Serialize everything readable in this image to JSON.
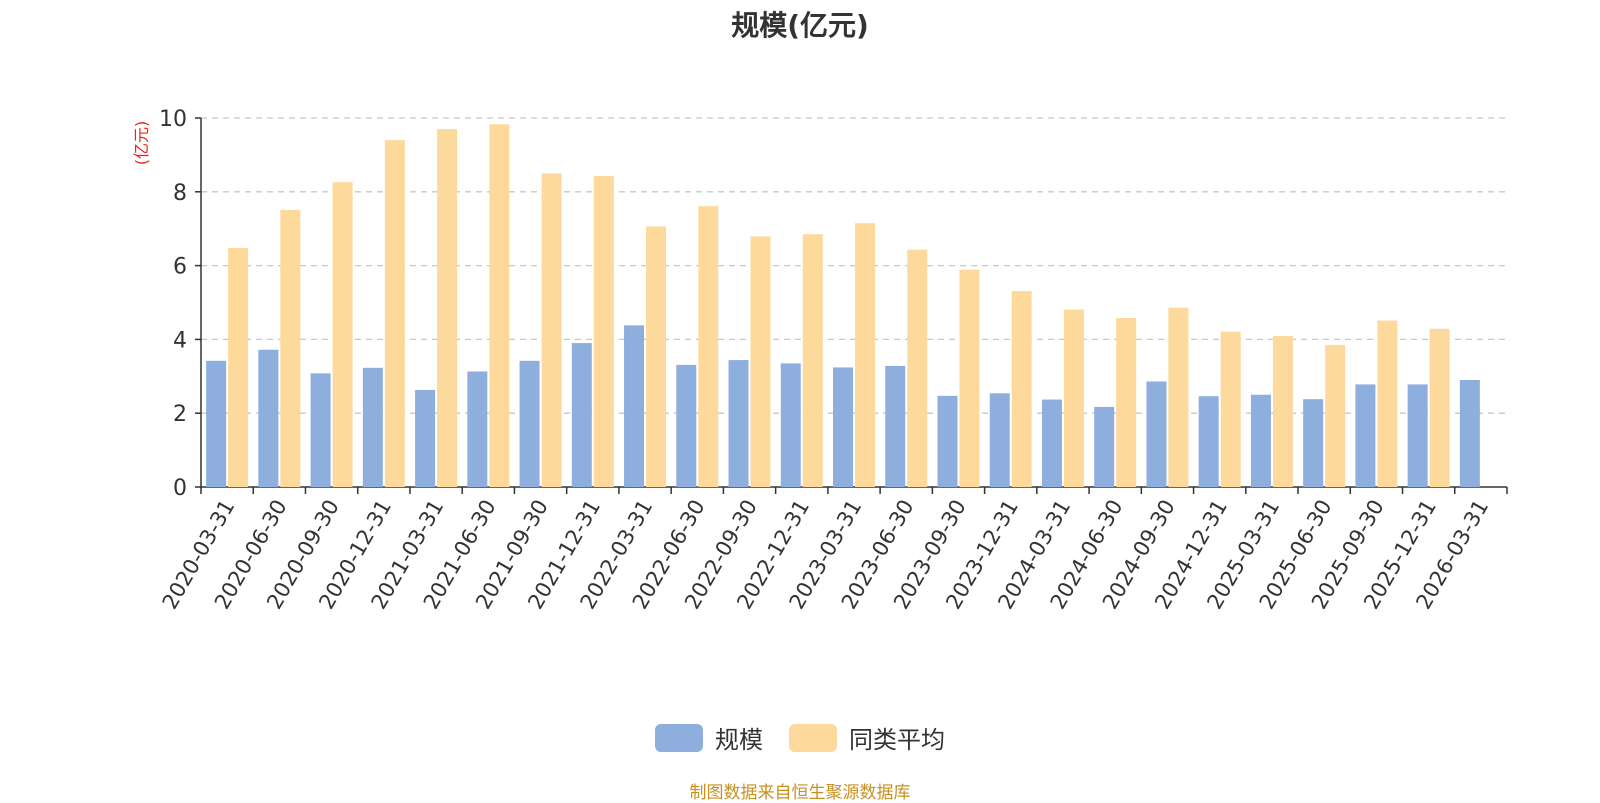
{
  "title": "规模(亿元)",
  "source_note": "制图数据来自恒生聚源数据库",
  "chart_data": {
    "type": "bar",
    "title": "规模(亿元)",
    "ylabel": "(亿元)",
    "xlabel": "",
    "ylim": [
      0,
      10
    ],
    "yticks": [
      0,
      2,
      4,
      6,
      8,
      10
    ],
    "grid": true,
    "legend_position": "bottom",
    "categories": [
      "2020-03-31",
      "2020-06-30",
      "2020-09-30",
      "2020-12-31",
      "2021-03-31",
      "2021-06-30",
      "2021-09-30",
      "2021-12-31",
      "2022-03-31",
      "2022-06-30",
      "2022-09-30",
      "2022-12-31",
      "2023-03-31",
      "2023-06-30",
      "2023-09-30",
      "2023-12-31",
      "2024-03-31",
      "2024-06-30",
      "2024-09-30",
      "2024-12-31",
      "2025-03-31",
      "2025-06-30",
      "2025-09-30",
      "2025-12-31",
      "2026-03-31"
    ],
    "series": [
      {
        "name": "规模",
        "color": "#8eaedd",
        "values": [
          3.42,
          3.72,
          3.08,
          3.23,
          2.63,
          3.13,
          3.42,
          3.9,
          4.38,
          3.31,
          3.44,
          3.35,
          3.24,
          3.28,
          2.47,
          2.54,
          2.37,
          2.17,
          2.86,
          2.46,
          2.5,
          2.38,
          2.78,
          2.78,
          2.9
        ]
      },
      {
        "name": "同类平均",
        "color": "#fdd99b",
        "values": [
          6.48,
          7.51,
          8.26,
          9.4,
          9.7,
          9.83,
          8.5,
          8.43,
          7.06,
          7.61,
          6.79,
          6.85,
          7.15,
          6.43,
          5.89,
          5.31,
          4.81,
          4.58,
          4.86,
          4.21,
          4.09,
          3.85,
          4.51,
          4.29,
          null
        ]
      }
    ]
  }
}
